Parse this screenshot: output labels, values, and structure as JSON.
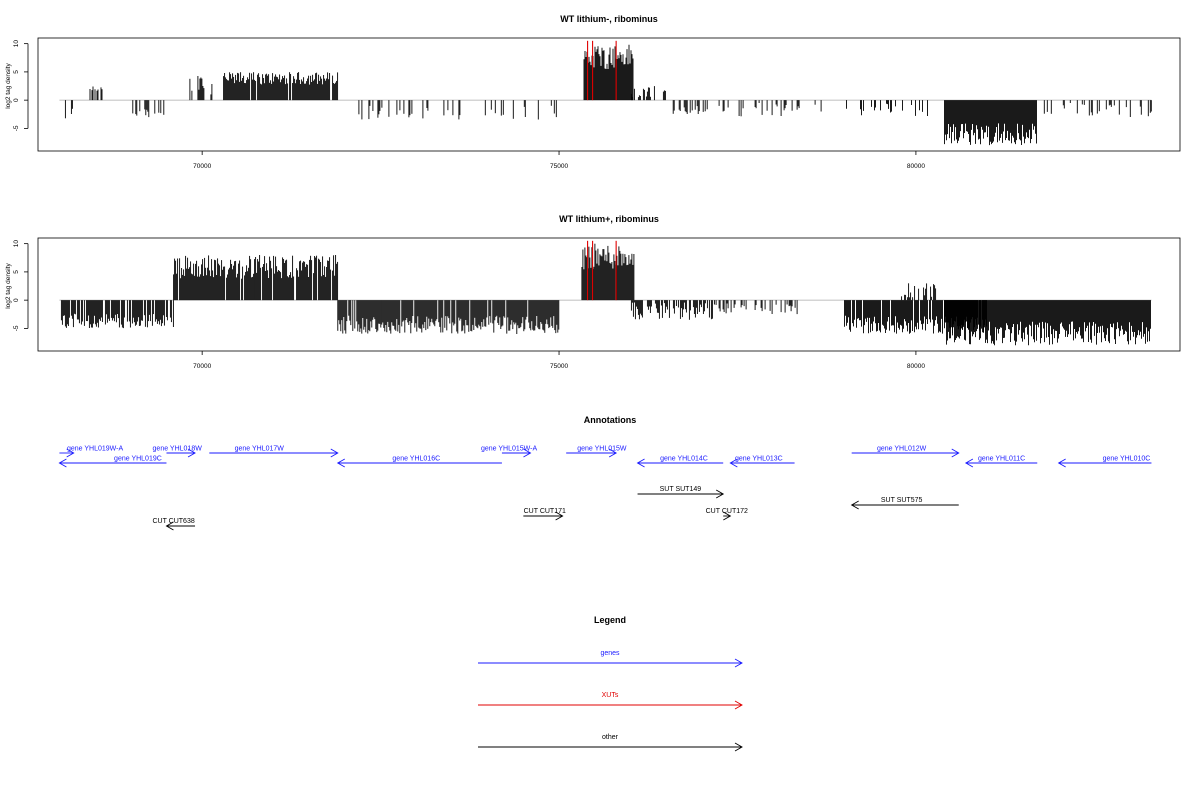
{
  "chart_data": [
    {
      "type": "bar",
      "title": "WT lithium-, ribominus",
      "ylabel": "log2 tag density",
      "xlim": [
        67700,
        83700
      ],
      "ylim": [
        -9,
        11
      ],
      "xticks": [
        70000,
        75000,
        80000
      ],
      "yticks": [
        10,
        5,
        0,
        -5
      ],
      "baseline": [
        68000,
        83300
      ],
      "highlight_color": "#e00000",
      "highlights": [
        75400,
        75470,
        75800
      ],
      "segments": [
        [
          68000,
          68200,
          -1,
          -3.5,
          0.25
        ],
        [
          68400,
          68600,
          1.5,
          2.5,
          0.5
        ],
        [
          69000,
          69500,
          -1,
          -3.5,
          0.35
        ],
        [
          69800,
          70150,
          1,
          4.5,
          0.5
        ],
        [
          70300,
          71900,
          1.5,
          5,
          0.92
        ],
        [
          72000,
          73700,
          -1,
          -3.5,
          0.2
        ],
        [
          73700,
          75000,
          -1,
          -3.5,
          0.15
        ],
        [
          75350,
          76050,
          3,
          10,
          1.0
        ],
        [
          76000,
          76500,
          0.5,
          2.5,
          0.4
        ],
        [
          76600,
          77100,
          -1,
          -2.5,
          0.5
        ],
        [
          77200,
          78700,
          -0.5,
          -3,
          0.28
        ],
        [
          79000,
          80200,
          -0.5,
          -3,
          0.18
        ],
        [
          80400,
          81700,
          -2,
          -8,
          1.0
        ],
        [
          81700,
          83300,
          -0.5,
          -3,
          0.2
        ]
      ]
    },
    {
      "type": "bar",
      "title": "WT lithium+, ribominus",
      "ylabel": "log2 tag density",
      "xlim": [
        67700,
        83700
      ],
      "ylim": [
        -9,
        11
      ],
      "xticks": [
        70000,
        75000,
        80000
      ],
      "yticks": [
        10,
        5,
        0,
        -5
      ],
      "baseline": [
        68000,
        83300
      ],
      "highlight_color": "#e00000",
      "highlights": [
        75400,
        75470,
        75800
      ],
      "segments": [
        [
          68000,
          69600,
          -1,
          -5,
          0.85
        ],
        [
          69600,
          71900,
          1.5,
          8,
          0.95
        ],
        [
          71900,
          75000,
          -1,
          -6,
          0.95
        ],
        [
          75320,
          76050,
          3,
          10,
          1.0
        ],
        [
          76000,
          77200,
          0.3,
          -3.5,
          0.7
        ],
        [
          77200,
          78500,
          -0.5,
          -2.5,
          0.3
        ],
        [
          79000,
          81000,
          -1,
          -6,
          0.9
        ],
        [
          79800,
          80300,
          0.5,
          3,
          0.4
        ],
        [
          80400,
          83300,
          -1.5,
          -8,
          1.0
        ]
      ]
    }
  ],
  "annotations": {
    "title": "Annotations",
    "xlim": [
      67700,
      83700
    ],
    "genes_color": "#1a1aff",
    "other_color": "#000000",
    "genes": [
      {
        "label": "gene YHL019W-A",
        "start": 68000,
        "end": 68200,
        "dir": "right",
        "row": 1,
        "text_x": 68500
      },
      {
        "label": "gene YHL019C",
        "start": 68000,
        "end": 69500,
        "dir": "left",
        "row": 2,
        "text_x": 69100
      },
      {
        "label": "gene YHL018W",
        "start": 69500,
        "end": 69900,
        "dir": "right",
        "row": 1,
        "text_x": 69650
      },
      {
        "label": "gene YHL017W",
        "start": 70100,
        "end": 71900,
        "dir": "right",
        "row": 1,
        "text_x": 70800
      },
      {
        "label": "gene YHL016C",
        "start": 71900,
        "end": 74200,
        "dir": "left",
        "row": 2,
        "text_x": 73000
      },
      {
        "label": "gene YHL015W-A",
        "start": 74200,
        "end": 74600,
        "dir": "right",
        "row": 1,
        "text_x": 74300
      },
      {
        "label": "gene YHL015W",
        "start": 75100,
        "end": 75800,
        "dir": "right",
        "row": 1,
        "text_x": 75600
      },
      {
        "label": "gene YHL014C",
        "start": 76100,
        "end": 77300,
        "dir": "left",
        "row": 2,
        "text_x": 76750
      },
      {
        "label": "gene YHL013C",
        "start": 77400,
        "end": 78300,
        "dir": "left",
        "row": 2,
        "text_x": 77800
      },
      {
        "label": "gene YHL012W",
        "start": 79100,
        "end": 80600,
        "dir": "right",
        "row": 1,
        "text_x": 79800
      },
      {
        "label": "gene YHL011C",
        "start": 80700,
        "end": 81700,
        "dir": "left",
        "row": 2,
        "text_x": 81200
      },
      {
        "label": "gene YHL010C",
        "start": 82000,
        "end": 83300,
        "dir": "left",
        "row": 2,
        "text_x": 82950
      }
    ],
    "other": [
      {
        "label": "SUT SUT149",
        "start": 76100,
        "end": 77300,
        "dir": "right",
        "row": 3,
        "text_x": 76700
      },
      {
        "label": "SUT SUT575",
        "start": 79100,
        "end": 80600,
        "dir": "left",
        "row": 4,
        "text_x": 79800
      },
      {
        "label": "CUT CUT171",
        "start": 74500,
        "end": 75050,
        "dir": "right",
        "row": 5,
        "text_x": 74800
      },
      {
        "label": "CUT CUT172",
        "start": 77300,
        "end": 77400,
        "dir": "right",
        "row": 5,
        "text_x": 77350
      },
      {
        "label": "CUT CUT638",
        "start": 69500,
        "end": 69900,
        "dir": "left",
        "row": 6,
        "text_x": 69600
      }
    ]
  },
  "legend": {
    "title": "Legend",
    "items": [
      {
        "label": "genes",
        "color": "#1a1aff"
      },
      {
        "label": "XUTs",
        "color": "#e00000"
      },
      {
        "label": "other",
        "color": "#000000"
      }
    ]
  }
}
